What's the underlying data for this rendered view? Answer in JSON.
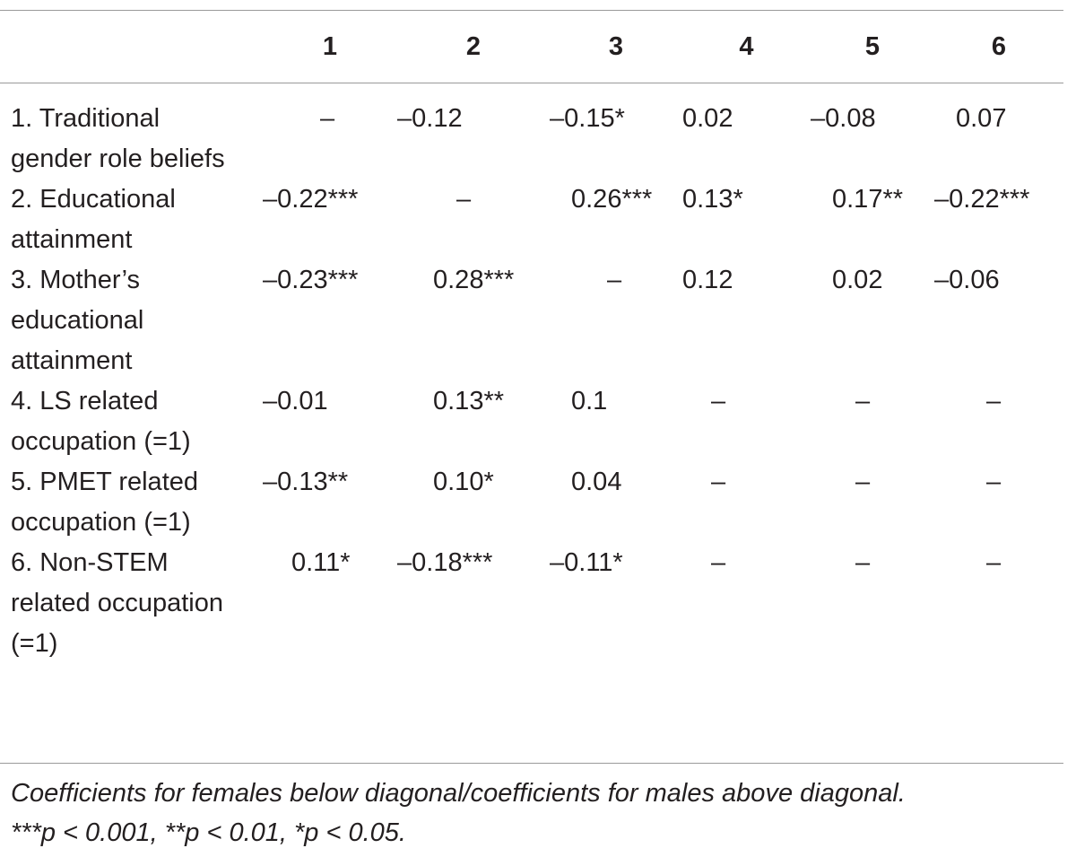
{
  "table": {
    "headers": [
      "",
      "1",
      "2",
      "3",
      "4",
      "5",
      "6"
    ],
    "rows": [
      {
        "label": "1. Traditional gender role beliefs",
        "cells": [
          "–",
          "–0.12",
          "–0.15*",
          "0.02",
          "–0.08",
          "0.07"
        ]
      },
      {
        "label": "2. Educational attainment",
        "cells": [
          "–0.22***",
          "–",
          "0.26***",
          "0.13*",
          "0.17**",
          "–0.22***"
        ]
      },
      {
        "label": "3. Mother’s educational attainment",
        "cells": [
          "–0.23***",
          "0.28***",
          "–",
          "0.12",
          "0.02",
          "–0.06"
        ]
      },
      {
        "label": "4. LS related occupation (=1)",
        "cells": [
          "–0.01",
          "0.13**",
          "0.1",
          "–",
          "–",
          "–"
        ]
      },
      {
        "label": "5. PMET related occupation (=1)",
        "cells": [
          "–0.13**",
          "0.10*",
          "0.04",
          "–",
          "–",
          "–"
        ]
      },
      {
        "label": "6. Non-STEM related occupation (=1)",
        "cells": [
          "0.11*",
          "–0.18***",
          "–0.11*",
          "–",
          "–",
          "–"
        ]
      }
    ]
  },
  "footnote": {
    "line1": "Coefficients for females below diagonal/coefficients for males above diagonal.",
    "line2": "***p < 0.001, **p < 0.01, *p < 0.05."
  }
}
